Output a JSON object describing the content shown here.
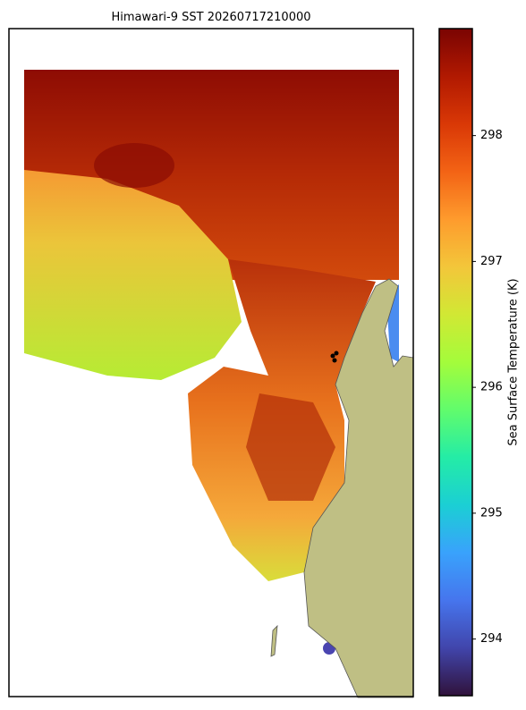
{
  "title": "Himawari-9 SST 20260717210000",
  "colorbar": {
    "label": "Sea Surface Temperature (K)",
    "colormap": "turbo",
    "lim": [
      293.55,
      298.85
    ],
    "ticks": [
      294,
      295,
      296,
      297,
      298
    ]
  }
}
